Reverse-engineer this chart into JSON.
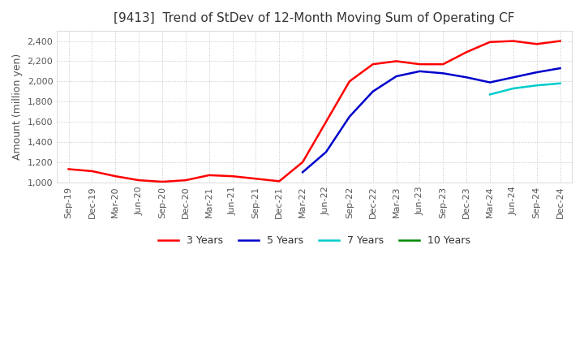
{
  "title": "[9413]  Trend of StDev of 12-Month Moving Sum of Operating CF",
  "ylabel": "Amount (million yen)",
  "ylim": [
    1000,
    2500
  ],
  "yticks": [
    1000,
    1200,
    1400,
    1600,
    1800,
    2000,
    2200,
    2400
  ],
  "background_color": "#ffffff",
  "plot_bg_color": "#ffffff",
  "grid_color": "#bbbbbb",
  "legend_labels": [
    "3 Years",
    "5 Years",
    "7 Years",
    "10 Years"
  ],
  "legend_colors": [
    "#ff0000",
    "#0000cc",
    "#00cccc",
    "#008800"
  ],
  "x_labels": [
    "Sep-19",
    "Dec-19",
    "Mar-20",
    "Jun-20",
    "Sep-20",
    "Dec-20",
    "Mar-21",
    "Jun-21",
    "Sep-21",
    "Dec-21",
    "Mar-22",
    "Jun-22",
    "Sep-22",
    "Dec-22",
    "Mar-23",
    "Jun-23",
    "Sep-23",
    "Dec-23",
    "Mar-24",
    "Jun-24",
    "Sep-24",
    "Dec-24"
  ],
  "series_3y": [
    1130,
    1110,
    1060,
    1020,
    1005,
    1020,
    1070,
    1060,
    1035,
    1010,
    1200,
    1600,
    2000,
    2170,
    2200,
    2170,
    2170,
    2290,
    2390,
    2400,
    2370,
    2400
  ],
  "series_5y": [
    null,
    null,
    null,
    null,
    null,
    null,
    null,
    null,
    null,
    null,
    1100,
    1300,
    1650,
    1900,
    2050,
    2100,
    2080,
    2040,
    1990,
    2040,
    2090,
    2130
  ],
  "series_7y": [
    null,
    null,
    null,
    null,
    null,
    null,
    null,
    null,
    null,
    null,
    null,
    null,
    null,
    null,
    null,
    null,
    null,
    null,
    1870,
    1930,
    1960,
    1980
  ],
  "series_10y": [
    null,
    null,
    null,
    null,
    null,
    null,
    null,
    null,
    null,
    null,
    null,
    null,
    null,
    null,
    null,
    null,
    null,
    null,
    null,
    null,
    null,
    null
  ],
  "title_fontsize": 11,
  "tick_fontsize": 8,
  "ylabel_fontsize": 9
}
